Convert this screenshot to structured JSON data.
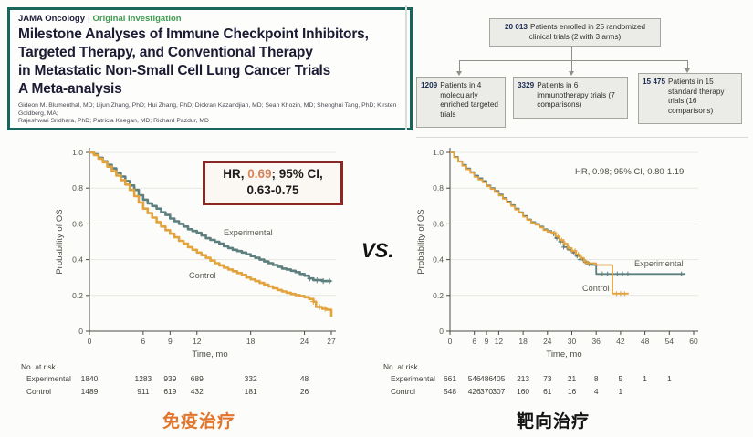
{
  "colors": {
    "jama_border_teal": "#19655c",
    "section_green": "#3e9b4f",
    "experimental_teal": "#5d7f7e",
    "control_orange": "#e3a33c",
    "caption_orange": "#e2752c",
    "hr_box_border_red": "#8c2723",
    "hr_value_orange": "#d7845a"
  },
  "paper": {
    "journal": "JAMA Oncology",
    "section": "Original Investigation",
    "title_lines": [
      "Milestone Analyses of Immune Checkpoint Inhibitors,",
      "Targeted Therapy, and Conventional Therapy",
      "in Metastatic Non-Small Cell Lung Cancer Trials",
      "A Meta-analysis"
    ],
    "authors_line1": "Gideon M. Blumenthal, MD; Lijun Zhang, PhD; Hui Zhang, PhD; Dickran Kazandjian, MD; Sean Khozin, MD; Shenghui Tang, PhD; Kirsten Goldberg, MA;",
    "authors_line2": "Rajeshwari Sridhara, PhD; Patricia Keegan, MD; Richard Pazdur, MD"
  },
  "flowchart": {
    "root": {
      "n": "20 013",
      "text": "Patients enrolled in 25 randomized clinical trials (2 with 3 arms)"
    },
    "children": [
      {
        "n": "1209",
        "text": "Patients in 4 molecularly enriched targeted trials"
      },
      {
        "n": "3329",
        "text": "Patients in 6 immunotherapy trials (7 comparisons)"
      },
      {
        "n": "15 475",
        "text": "Patients in 15 standard therapy trials (16 comparisons)"
      }
    ]
  },
  "vs_label": "VS.",
  "captions": {
    "left_zh": "免疫治疗",
    "right_zh": "靶向治疗"
  },
  "chart_data": [
    {
      "type": "line",
      "subtype": "kaplan-meier",
      "panel": "immunotherapy",
      "xlabel": "Time, mo",
      "ylabel": "Probability of OS",
      "xlim": [
        0,
        27
      ],
      "ylim": [
        0,
        1
      ],
      "x_ticks": [
        0,
        6,
        9,
        12,
        18,
        24,
        27
      ],
      "y_ticks": [
        0,
        0.2,
        0.4,
        0.6,
        0.8,
        1.0
      ],
      "grid": "horizontal",
      "annotation": {
        "prefix": "HR, ",
        "hr_value": "0.69",
        "mid": "; 95% CI,",
        "line2": "0.63-0.75"
      },
      "series": [
        {
          "name": "Experimental",
          "color": "#5d7f7e",
          "points": [
            [
              0,
              1.0
            ],
            [
              0.5,
              0.99
            ],
            [
              1,
              0.97
            ],
            [
              1.5,
              0.95
            ],
            [
              2,
              0.93
            ],
            [
              2.5,
              0.91
            ],
            [
              3,
              0.885
            ],
            [
              3.5,
              0.865
            ],
            [
              4,
              0.84
            ],
            [
              4.5,
              0.815
            ],
            [
              5,
              0.79
            ],
            [
              5.5,
              0.76
            ],
            [
              6,
              0.735
            ],
            [
              6.5,
              0.715
            ],
            [
              7,
              0.7
            ],
            [
              7.5,
              0.685
            ],
            [
              8,
              0.665
            ],
            [
              8.5,
              0.65
            ],
            [
              9,
              0.63
            ],
            [
              9.5,
              0.615
            ],
            [
              10,
              0.6
            ],
            [
              10.5,
              0.585
            ],
            [
              11,
              0.57
            ],
            [
              11.5,
              0.56
            ],
            [
              12,
              0.55
            ],
            [
              12.5,
              0.535
            ],
            [
              13,
              0.52
            ],
            [
              13.5,
              0.51
            ],
            [
              14,
              0.5
            ],
            [
              14.5,
              0.49
            ],
            [
              15,
              0.475
            ],
            [
              15.5,
              0.465
            ],
            [
              16,
              0.455
            ],
            [
              16.5,
              0.448
            ],
            [
              17,
              0.44
            ],
            [
              17.5,
              0.43
            ],
            [
              18,
              0.42
            ],
            [
              18.5,
              0.41
            ],
            [
              19,
              0.4
            ],
            [
              19.5,
              0.39
            ],
            [
              20,
              0.38
            ],
            [
              20.5,
              0.37
            ],
            [
              21,
              0.36
            ],
            [
              21.5,
              0.35
            ],
            [
              22,
              0.345
            ],
            [
              22.5,
              0.338
            ],
            [
              23,
              0.33
            ],
            [
              23.5,
              0.32
            ],
            [
              24,
              0.31
            ],
            [
              24.5,
              0.295
            ],
            [
              25,
              0.285
            ],
            [
              26,
              0.28
            ],
            [
              27,
              0.28
            ]
          ],
          "censor_t": [
            24.6,
            25.4,
            26.1,
            26.8
          ]
        },
        {
          "name": "Control",
          "color": "#e3a33c",
          "points": [
            [
              0,
              1.0
            ],
            [
              0.5,
              0.985
            ],
            [
              1,
              0.965
            ],
            [
              1.5,
              0.945
            ],
            [
              2,
              0.92
            ],
            [
              2.5,
              0.895
            ],
            [
              3,
              0.87
            ],
            [
              3.5,
              0.845
            ],
            [
              4,
              0.82
            ],
            [
              4.5,
              0.79
            ],
            [
              5,
              0.755
            ],
            [
              5.5,
              0.72
            ],
            [
              6,
              0.685
            ],
            [
              6.5,
              0.66
            ],
            [
              7,
              0.635
            ],
            [
              7.5,
              0.61
            ],
            [
              8,
              0.585
            ],
            [
              8.5,
              0.565
            ],
            [
              9,
              0.545
            ],
            [
              9.5,
              0.525
            ],
            [
              10,
              0.505
            ],
            [
              10.5,
              0.49
            ],
            [
              11,
              0.47
            ],
            [
              11.5,
              0.455
            ],
            [
              12,
              0.44
            ],
            [
              12.5,
              0.425
            ],
            [
              13,
              0.41
            ],
            [
              13.5,
              0.395
            ],
            [
              14,
              0.38
            ],
            [
              14.5,
              0.368
            ],
            [
              15,
              0.355
            ],
            [
              15.5,
              0.345
            ],
            [
              16,
              0.335
            ],
            [
              16.5,
              0.325
            ],
            [
              17,
              0.315
            ],
            [
              17.5,
              0.3
            ],
            [
              18,
              0.29
            ],
            [
              18.5,
              0.28
            ],
            [
              19,
              0.27
            ],
            [
              19.5,
              0.26
            ],
            [
              20,
              0.25
            ],
            [
              20.5,
              0.24
            ],
            [
              21,
              0.23
            ],
            [
              21.5,
              0.222
            ],
            [
              22,
              0.215
            ],
            [
              22.5,
              0.208
            ],
            [
              23,
              0.202
            ],
            [
              23.5,
              0.197
            ],
            [
              24,
              0.19
            ],
            [
              24.5,
              0.18
            ],
            [
              25,
              0.165
            ],
            [
              25.3,
              0.135
            ],
            [
              26,
              0.125
            ],
            [
              26.5,
              0.12
            ],
            [
              27,
              0.08
            ]
          ],
          "censor_t": [
            25.0,
            25.7,
            26.3
          ]
        }
      ],
      "risk_table": {
        "header": "No. at risk",
        "rows": [
          {
            "label": "Experimental",
            "ticks": [
              0,
              6,
              9,
              12,
              18,
              24
            ],
            "values": [
              "1840",
              "1283",
              "939",
              "689",
              "332",
              "48"
            ]
          },
          {
            "label": "Control",
            "ticks": [
              0,
              6,
              9,
              12,
              18,
              24
            ],
            "values": [
              "1489",
              "911",
              "619",
              "432",
              "181",
              "26"
            ]
          }
        ]
      }
    },
    {
      "type": "line",
      "subtype": "kaplan-meier",
      "panel": "targeted-therapy",
      "xlabel": "Time, mo",
      "ylabel": "Probability of OS",
      "xlim": [
        0,
        60
      ],
      "ylim": [
        0,
        1
      ],
      "x_ticks": [
        0,
        6,
        9,
        12,
        18,
        24,
        30,
        36,
        42,
        48,
        54,
        60
      ],
      "y_ticks": [
        0,
        0.2,
        0.4,
        0.6,
        0.8,
        1.0
      ],
      "grid": "horizontal",
      "annotation_text": "HR, 0.98; 95% CI, 0.80-1.19",
      "series": [
        {
          "name": "Experimental",
          "color": "#5d7f7e",
          "points": [
            [
              0,
              1.0
            ],
            [
              1,
              0.975
            ],
            [
              2,
              0.95
            ],
            [
              3,
              0.93
            ],
            [
              4,
              0.91
            ],
            [
              5,
              0.89
            ],
            [
              6,
              0.87
            ],
            [
              7,
              0.855
            ],
            [
              8,
              0.84
            ],
            [
              9,
              0.815
            ],
            [
              10,
              0.8
            ],
            [
              11,
              0.785
            ],
            [
              12,
              0.765
            ],
            [
              13,
              0.745
            ],
            [
              14,
              0.725
            ],
            [
              15,
              0.705
            ],
            [
              16,
              0.685
            ],
            [
              17,
              0.665
            ],
            [
              18,
              0.645
            ],
            [
              19,
              0.625
            ],
            [
              20,
              0.61
            ],
            [
              21,
              0.6
            ],
            [
              22,
              0.585
            ],
            [
              23,
              0.57
            ],
            [
              24,
              0.56
            ],
            [
              25,
              0.545
            ],
            [
              26,
              0.52
            ],
            [
              27,
              0.5
            ],
            [
              28,
              0.47
            ],
            [
              29,
              0.455
            ],
            [
              30,
              0.44
            ],
            [
              31,
              0.42
            ],
            [
              32,
              0.4
            ],
            [
              33,
              0.385
            ],
            [
              34,
              0.375
            ],
            [
              35,
              0.37
            ],
            [
              36,
              0.32
            ],
            [
              58,
              0.32
            ]
          ],
          "censor_t": [
            25.5,
            26.3,
            27.2,
            28.0,
            28.8,
            29.6,
            30.5,
            31.3,
            32.0,
            32.8,
            33.5,
            34.3,
            37.5,
            38.8,
            40.0,
            41.2,
            42.5,
            43.8,
            57.0
          ]
        },
        {
          "name": "Control",
          "color": "#e3a33c",
          "points": [
            [
              0,
              1.0
            ],
            [
              1,
              0.972
            ],
            [
              2,
              0.948
            ],
            [
              3,
              0.925
            ],
            [
              4,
              0.905
            ],
            [
              5,
              0.885
            ],
            [
              6,
              0.862
            ],
            [
              7,
              0.848
            ],
            [
              8,
              0.832
            ],
            [
              9,
              0.81
            ],
            [
              10,
              0.795
            ],
            [
              11,
              0.778
            ],
            [
              12,
              0.758
            ],
            [
              13,
              0.74
            ],
            [
              14,
              0.72
            ],
            [
              15,
              0.7
            ],
            [
              16,
              0.68
            ],
            [
              17,
              0.662
            ],
            [
              18,
              0.64
            ],
            [
              19,
              0.622
            ],
            [
              20,
              0.605
            ],
            [
              21,
              0.595
            ],
            [
              22,
              0.58
            ],
            [
              23,
              0.565
            ],
            [
              24,
              0.555
            ],
            [
              25,
              0.55
            ],
            [
              26,
              0.53
            ],
            [
              27,
              0.51
            ],
            [
              28,
              0.49
            ],
            [
              29,
              0.465
            ],
            [
              30,
              0.45
            ],
            [
              31,
              0.43
            ],
            [
              32,
              0.41
            ],
            [
              33,
              0.39
            ],
            [
              34,
              0.38
            ],
            [
              36,
              0.37
            ],
            [
              40,
              0.37
            ],
            [
              40,
              0.21
            ],
            [
              44,
              0.21
            ]
          ],
          "censor_t": [
            25.8,
            26.6,
            27.5,
            28.3,
            29.2,
            30.0,
            30.8,
            31.6,
            32.4,
            33.2,
            34.0,
            41.0,
            42.0,
            43.0
          ]
        }
      ],
      "risk_table": {
        "header": "No. at risk",
        "rows": [
          {
            "label": "Experimental",
            "ticks": [
              0,
              6,
              9,
              12,
              18,
              24,
              30,
              36,
              42,
              48,
              54
            ],
            "values": [
              "661",
              "546",
              "486",
              "405",
              "213",
              "73",
              "21",
              "8",
              "5",
              "1",
              "1"
            ]
          },
          {
            "label": "Control",
            "ticks": [
              0,
              6,
              9,
              12,
              18,
              24,
              30,
              36,
              42
            ],
            "values": [
              "548",
              "426",
              "370",
              "307",
              "160",
              "61",
              "16",
              "4",
              "1"
            ]
          }
        ]
      }
    }
  ]
}
